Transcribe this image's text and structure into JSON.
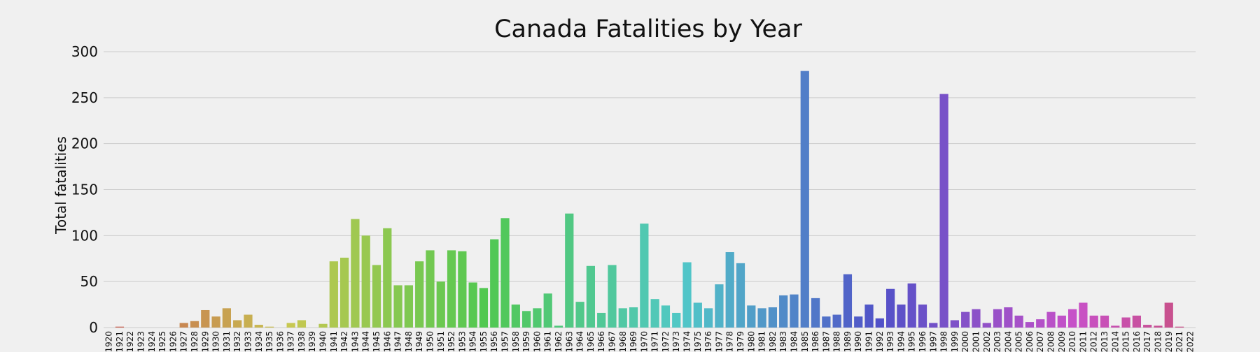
{
  "chart_data": {
    "type": "bar",
    "title": "Canada Fatalities by Year",
    "xlabel": "",
    "ylabel": "Total fatalities",
    "ylim": [
      0,
      300
    ],
    "yticks": [
      0,
      50,
      100,
      150,
      200,
      250,
      300
    ],
    "grid": true,
    "categories": [
      "1920",
      "1921",
      "1922",
      "1923",
      "1924",
      "1925",
      "1926",
      "1927",
      "1928",
      "1929",
      "1930",
      "1931",
      "1932",
      "1933",
      "1934",
      "1935",
      "1936",
      "1937",
      "1938",
      "1939",
      "1940",
      "1941",
      "1942",
      "1943",
      "1944",
      "1945",
      "1946",
      "1947",
      "1948",
      "1949",
      "1950",
      "1951",
      "1952",
      "1953",
      "1954",
      "1955",
      "1956",
      "1957",
      "1958",
      "1959",
      "1960",
      "1961",
      "1962",
      "1963",
      "1964",
      "1965",
      "1966",
      "1967",
      "1968",
      "1969",
      "1970",
      "1971",
      "1972",
      "1973",
      "1974",
      "1975",
      "1976",
      "1977",
      "1978",
      "1979",
      "1980",
      "1981",
      "1982",
      "1983",
      "1984",
      "1985",
      "1986",
      "1987",
      "1988",
      "1989",
      "1990",
      "1991",
      "1992",
      "1993",
      "1994",
      "1995",
      "1996",
      "1997",
      "1998",
      "1999",
      "2000",
      "2001",
      "2002",
      "2003",
      "2004",
      "2005",
      "2006",
      "2007",
      "2008",
      "2009",
      "2010",
      "2011",
      "2012",
      "2013",
      "2014",
      "2015",
      "2016",
      "2017",
      "2018",
      "2019",
      "2021",
      "2022"
    ],
    "values": [
      0,
      1,
      0,
      0,
      0,
      0,
      0,
      5,
      7,
      19,
      12,
      21,
      8,
      14,
      3,
      1,
      0,
      5,
      8,
      0,
      4,
      72,
      76,
      118,
      100,
      68,
      108,
      46,
      46,
      72,
      84,
      50,
      84,
      83,
      49,
      43,
      96,
      119,
      25,
      18,
      21,
      37,
      2,
      124,
      28,
      67,
      16,
      68,
      21,
      22,
      113,
      31,
      24,
      16,
      71,
      27,
      21,
      47,
      82,
      70,
      24,
      21,
      22,
      35,
      36,
      279,
      32,
      12,
      14,
      58,
      12,
      25,
      10,
      42,
      25,
      48,
      25,
      5,
      254,
      8,
      17,
      20,
      5,
      20,
      22,
      13,
      6,
      9,
      17,
      13,
      20,
      27,
      13,
      13,
      2,
      11,
      13,
      3,
      2,
      27,
      1,
      0
    ]
  }
}
